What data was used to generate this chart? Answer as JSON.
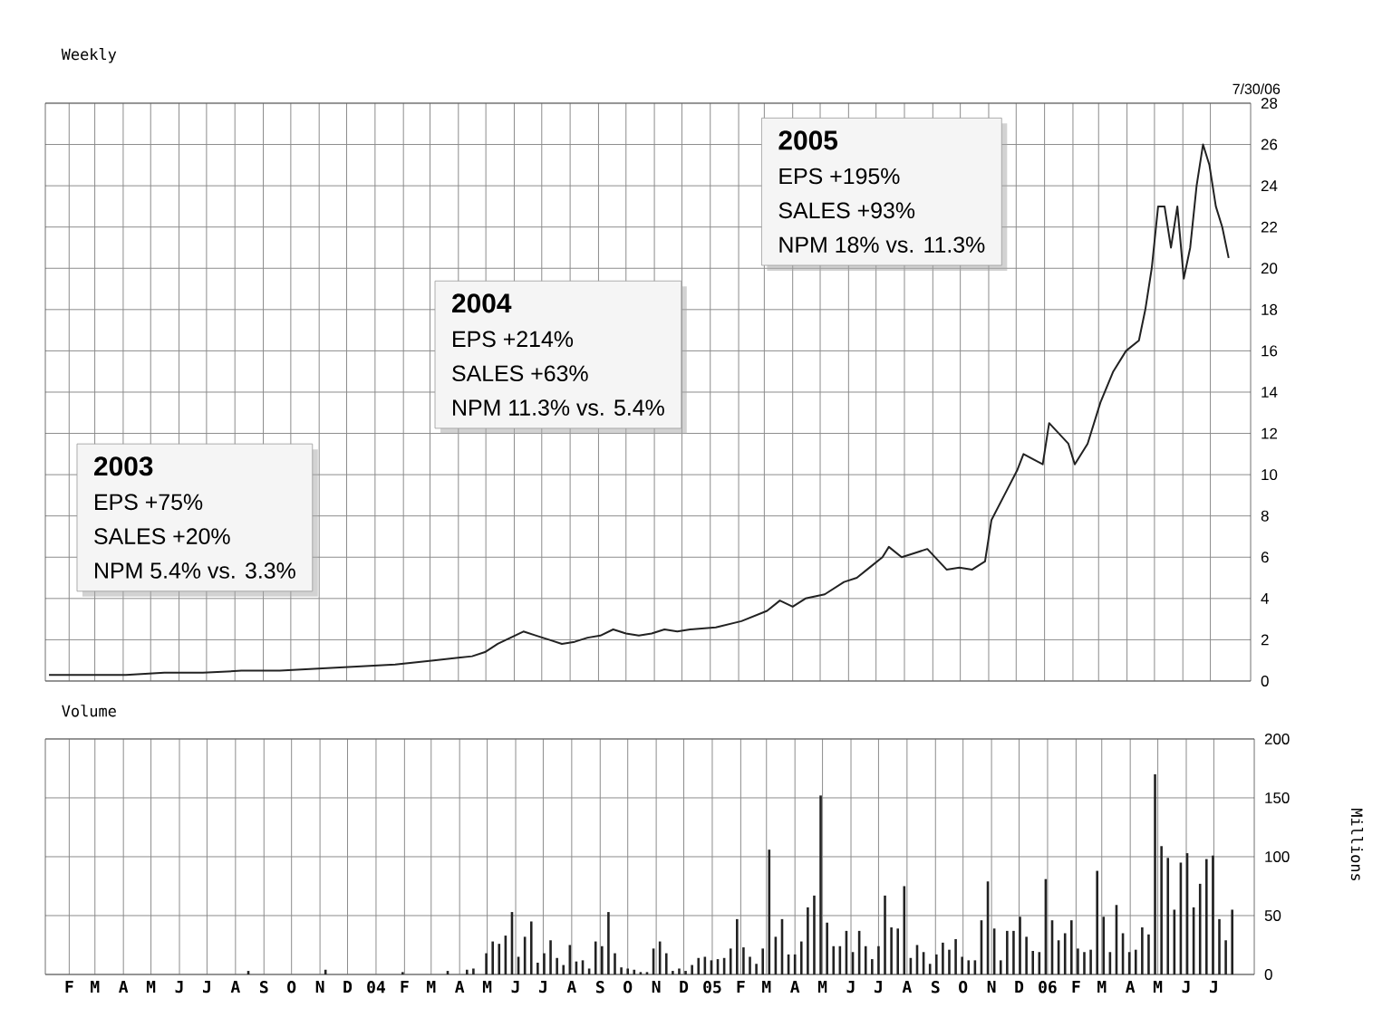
{
  "chart_data": [
    {
      "type": "line",
      "title": "Weekly",
      "subtitle": "7/30/06",
      "annotations": [
        "2003",
        "EPS +75%",
        "SALES +20%",
        "NPM 5.4% vs. 3.3%",
        "2004",
        "EPS +214%",
        "SALES +63%",
        "NPM 11.3% vs. 5.4%",
        "2005",
        "EPS +195%",
        "SALES +93%",
        "NPM 18% vs. 11.3%"
      ],
      "x": [
        "2003-01-10",
        "2003-02-21",
        "2003-04-04",
        "2003-05-16",
        "2003-06-27",
        "2003-08-08",
        "2003-09-19",
        "2003-10-31",
        "2003-12-12",
        "2004-01-23",
        "2004-03-05",
        "2004-04-16",
        "2004-04-30",
        "2004-05-14",
        "2004-05-28",
        "2004-06-11",
        "2004-06-25",
        "2004-07-09",
        "2004-07-23",
        "2004-08-06",
        "2004-08-20",
        "2004-09-03",
        "2004-09-17",
        "2004-10-01",
        "2004-10-15",
        "2004-10-29",
        "2004-11-12",
        "2004-11-26",
        "2004-12-10",
        "2005-01-07",
        "2005-02-04",
        "2005-03-04",
        "2005-03-18",
        "2005-04-01",
        "2005-04-15",
        "2005-05-06",
        "2005-05-27",
        "2005-06-10",
        "2005-06-24",
        "2005-07-08",
        "2005-07-15",
        "2005-07-29",
        "2005-08-12",
        "2005-08-26",
        "2005-09-16",
        "2005-09-30",
        "2005-10-14",
        "2005-10-28",
        "2005-11-04",
        "2005-11-18",
        "2005-12-02",
        "2005-12-09",
        "2005-12-30",
        "2006-01-06",
        "2006-01-27",
        "2006-02-03",
        "2006-02-17",
        "2006-03-03",
        "2006-03-17",
        "2006-03-31",
        "2006-04-14",
        "2006-04-21",
        "2006-04-28",
        "2006-05-05",
        "2006-05-12",
        "2006-05-19",
        "2006-05-26",
        "2006-06-02",
        "2006-06-09",
        "2006-06-16",
        "2006-06-23",
        "2006-06-30",
        "2006-07-07",
        "2006-07-14",
        "2006-07-21"
      ],
      "values": [
        0.3,
        0.3,
        0.3,
        0.4,
        0.4,
        0.5,
        0.5,
        0.6,
        0.7,
        0.8,
        1.0,
        1.2,
        1.4,
        1.8,
        2.1,
        2.4,
        2.2,
        2.0,
        1.8,
        1.9,
        2.1,
        2.2,
        2.5,
        2.3,
        2.2,
        2.3,
        2.5,
        2.4,
        2.5,
        2.6,
        2.9,
        3.4,
        3.9,
        3.6,
        4.0,
        4.2,
        4.8,
        5.0,
        5.5,
        6.0,
        6.5,
        6.0,
        6.2,
        6.4,
        5.4,
        5.5,
        5.4,
        5.8,
        7.8,
        9.0,
        10.2,
        11.0,
        10.5,
        12.5,
        11.5,
        10.5,
        11.5,
        13.5,
        15.0,
        16.0,
        16.5,
        18.0,
        20.0,
        23.0,
        23.0,
        21.0,
        23.0,
        19.5,
        21.0,
        24.0,
        26.0,
        25.0,
        23.0,
        22.0,
        20.5
      ],
      "color": "#222222",
      "marker": "none",
      "line_style": "solid",
      "grid": true,
      "tick_labels": "y",
      "xlim": [
        "2003-01-06",
        "2006-08-14"
      ],
      "ylim": [
        0,
        28
      ],
      "yticks": [
        0,
        2,
        4,
        6,
        8,
        10,
        12,
        14,
        16,
        18,
        20,
        22,
        24,
        26,
        28
      ],
      "xticks": [
        {
          "value": "2003-02-01",
          "label": null
        },
        {
          "value": "2003-03-01",
          "label": null
        },
        {
          "value": "2003-04-01",
          "label": null
        },
        {
          "value": "2003-05-01",
          "label": null
        },
        {
          "value": "2003-06-01",
          "label": null
        },
        {
          "value": "2003-07-01",
          "label": null
        },
        {
          "value": "2003-08-01",
          "label": null
        },
        {
          "value": "2003-09-01",
          "label": null
        },
        {
          "value": "2003-10-01",
          "label": null
        },
        {
          "value": "2003-11-01",
          "label": null
        },
        {
          "value": "2003-12-01",
          "label": null
        },
        {
          "value": "2004-01-01",
          "label": null
        },
        {
          "value": "2004-02-01",
          "label": null
        },
        {
          "value": "2004-03-01",
          "label": null
        },
        {
          "value": "2004-04-01",
          "label": null
        },
        {
          "value": "2004-05-01",
          "label": null
        },
        {
          "value": "2004-06-01",
          "label": null
        },
        {
          "value": "2004-07-01",
          "label": null
        },
        {
          "value": "2004-08-01",
          "label": null
        },
        {
          "value": "2004-09-01",
          "label": null
        },
        {
          "value": "2004-10-01",
          "label": null
        },
        {
          "value": "2004-11-01",
          "label": null
        },
        {
          "value": "2004-12-01",
          "label": null
        },
        {
          "value": "2005-01-01",
          "label": null
        },
        {
          "value": "2005-02-01",
          "label": null
        },
        {
          "value": "2005-03-01",
          "label": null
        },
        {
          "value": "2005-04-01",
          "label": null
        },
        {
          "value": "2005-05-01",
          "label": null
        },
        {
          "value": "2005-06-01",
          "label": null
        },
        {
          "value": "2005-07-01",
          "label": null
        },
        {
          "value": "2005-08-01",
          "label": null
        },
        {
          "value": "2005-09-01",
          "label": null
        },
        {
          "value": "2005-10-01",
          "label": null
        },
        {
          "value": "2005-11-01",
          "label": null
        },
        {
          "value": "2005-12-01",
          "label": null
        },
        {
          "value": "2006-01-01",
          "label": null
        },
        {
          "value": "2006-02-01",
          "label": null
        },
        {
          "value": "2006-03-01",
          "label": null
        },
        {
          "value": "2006-04-01",
          "label": null
        },
        {
          "value": "2006-05-01",
          "label": null
        },
        {
          "value": "2006-06-01",
          "label": null
        },
        {
          "value": "2006-07-01",
          "label": null
        }
      ]
    },
    {
      "type": "bar",
      "title": "Volume",
      "ylabel": "Millions",
      "x": [
        "2003-08-15",
        "2003-11-07",
        "2004-01-30",
        "2004-03-19",
        "2004-04-09",
        "2004-04-16",
        "2004-04-30",
        "2004-05-07",
        "2004-05-14",
        "2004-05-21",
        "2004-05-28",
        "2004-06-04",
        "2004-06-11",
        "2004-06-18",
        "2004-06-25",
        "2004-07-02",
        "2004-07-09",
        "2004-07-16",
        "2004-07-23",
        "2004-07-30",
        "2004-08-06",
        "2004-08-13",
        "2004-08-20",
        "2004-08-27",
        "2004-09-03",
        "2004-09-10",
        "2004-09-17",
        "2004-09-24",
        "2004-10-01",
        "2004-10-08",
        "2004-10-15",
        "2004-10-22",
        "2004-10-29",
        "2004-11-05",
        "2004-11-12",
        "2004-11-19",
        "2004-11-26",
        "2004-12-03",
        "2004-12-10",
        "2004-12-17",
        "2004-12-24",
        "2004-12-31",
        "2005-01-07",
        "2005-01-14",
        "2005-01-21",
        "2005-01-28",
        "2005-02-04",
        "2005-02-11",
        "2005-02-18",
        "2005-02-25",
        "2005-03-04",
        "2005-03-11",
        "2005-03-18",
        "2005-03-25",
        "2005-04-01",
        "2005-04-08",
        "2005-04-15",
        "2005-04-22",
        "2005-04-29",
        "2005-05-06",
        "2005-05-13",
        "2005-05-20",
        "2005-05-27",
        "2005-06-03",
        "2005-06-10",
        "2005-06-17",
        "2005-06-24",
        "2005-07-01",
        "2005-07-08",
        "2005-07-15",
        "2005-07-22",
        "2005-07-29",
        "2005-08-05",
        "2005-08-12",
        "2005-08-19",
        "2005-08-26",
        "2005-09-02",
        "2005-09-09",
        "2005-09-16",
        "2005-09-23",
        "2005-09-30",
        "2005-10-07",
        "2005-10-14",
        "2005-10-21",
        "2005-10-28",
        "2005-11-04",
        "2005-11-11",
        "2005-11-18",
        "2005-11-25",
        "2005-12-02",
        "2005-12-09",
        "2005-12-16",
        "2005-12-23",
        "2005-12-30",
        "2006-01-06",
        "2006-01-13",
        "2006-01-20",
        "2006-01-27",
        "2006-02-03",
        "2006-02-10",
        "2006-02-17",
        "2006-02-24",
        "2006-03-03",
        "2006-03-10",
        "2006-03-17",
        "2006-03-24",
        "2006-03-31",
        "2006-04-07",
        "2006-04-14",
        "2006-04-21",
        "2006-04-28",
        "2006-05-05",
        "2006-05-12",
        "2006-05-19",
        "2006-05-26",
        "2006-06-02",
        "2006-06-09",
        "2006-06-16",
        "2006-06-23",
        "2006-06-30",
        "2006-07-07",
        "2006-07-14",
        "2006-07-21"
      ],
      "values": [
        3,
        4,
        2,
        3,
        4,
        5,
        18,
        28,
        26,
        33,
        53,
        15,
        32,
        45,
        10,
        18,
        29,
        14,
        8,
        25,
        11,
        12,
        5,
        28,
        24,
        53,
        18,
        6,
        5,
        4,
        2,
        2,
        22,
        28,
        18,
        3,
        5,
        3,
        8,
        14,
        15,
        12,
        13,
        14,
        22,
        47,
        23,
        15,
        9,
        22,
        106,
        32,
        47,
        17,
        17,
        28,
        57,
        67,
        152,
        44,
        24,
        24,
        37,
        19,
        37,
        24,
        13,
        24,
        67,
        40,
        39,
        75,
        14,
        25,
        19,
        9,
        17,
        27,
        21,
        30,
        15,
        12,
        12,
        46,
        79,
        39,
        12,
        37,
        37,
        49,
        32,
        20,
        19,
        81,
        46,
        29,
        35,
        46,
        22,
        19,
        21,
        88,
        49,
        19,
        59,
        35,
        19,
        21,
        40,
        34,
        170,
        109,
        99,
        55,
        95,
        103,
        57,
        77,
        98,
        101,
        47,
        29,
        55
      ],
      "color": "#222222",
      "grid": true,
      "xlim": [
        "2003-01-06",
        "2006-08-14"
      ],
      "ylim": [
        0,
        200
      ],
      "yticks": [
        0,
        50,
        100,
        150,
        200
      ],
      "xticks": [
        {
          "value": "2003-02-01",
          "label": "F"
        },
        {
          "value": "2003-03-01",
          "label": "M"
        },
        {
          "value": "2003-04-01",
          "label": "A"
        },
        {
          "value": "2003-05-01",
          "label": "M"
        },
        {
          "value": "2003-06-01",
          "label": "J"
        },
        {
          "value": "2003-07-01",
          "label": "J"
        },
        {
          "value": "2003-08-01",
          "label": "A"
        },
        {
          "value": "2003-09-01",
          "label": "S"
        },
        {
          "value": "2003-10-01",
          "label": "O"
        },
        {
          "value": "2003-11-01",
          "label": "N"
        },
        {
          "value": "2003-12-01",
          "label": "D"
        },
        {
          "value": "2004-01-01",
          "label": "04"
        },
        {
          "value": "2004-02-01",
          "label": "F"
        },
        {
          "value": "2004-03-01",
          "label": "M"
        },
        {
          "value": "2004-04-01",
          "label": "A"
        },
        {
          "value": "2004-05-01",
          "label": "M"
        },
        {
          "value": "2004-06-01",
          "label": "J"
        },
        {
          "value": "2004-07-01",
          "label": "J"
        },
        {
          "value": "2004-08-01",
          "label": "A"
        },
        {
          "value": "2004-09-01",
          "label": "S"
        },
        {
          "value": "2004-10-01",
          "label": "O"
        },
        {
          "value": "2004-11-01",
          "label": "N"
        },
        {
          "value": "2004-12-01",
          "label": "D"
        },
        {
          "value": "2005-01-01",
          "label": "05"
        },
        {
          "value": "2005-02-01",
          "label": "F"
        },
        {
          "value": "2005-03-01",
          "label": "M"
        },
        {
          "value": "2005-04-01",
          "label": "A"
        },
        {
          "value": "2005-05-01",
          "label": "M"
        },
        {
          "value": "2005-06-01",
          "label": "J"
        },
        {
          "value": "2005-07-01",
          "label": "J"
        },
        {
          "value": "2005-08-01",
          "label": "A"
        },
        {
          "value": "2005-09-01",
          "label": "S"
        },
        {
          "value": "2005-10-01",
          "label": "O"
        },
        {
          "value": "2005-11-01",
          "label": "N"
        },
        {
          "value": "2005-12-01",
          "label": "D"
        },
        {
          "value": "2006-01-01",
          "label": "06"
        },
        {
          "value": "2006-02-01",
          "label": "F"
        },
        {
          "value": "2006-03-01",
          "label": "M"
        },
        {
          "value": "2006-04-01",
          "label": "A"
        },
        {
          "value": "2006-05-01",
          "label": "M"
        },
        {
          "value": "2006-06-01",
          "label": "J"
        },
        {
          "value": "2006-07-01",
          "label": "J"
        }
      ]
    }
  ]
}
